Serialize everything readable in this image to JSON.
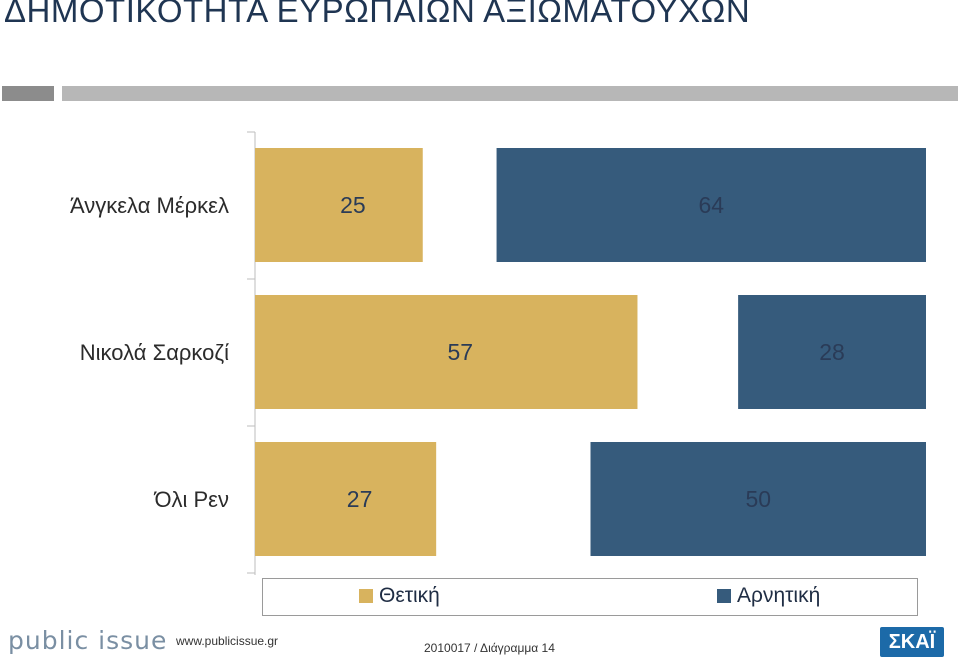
{
  "title": "ΔΗΜΟΤΙΚΟΤΗΤΑ ΕΥΡΩΠΑΙΩΝ ΑΞΙΩΜΑΤΟΥΧΩΝ",
  "chart_data": {
    "type": "bar",
    "orientation": "horizontal",
    "categories": [
      "Άνγκελα Μέρκελ",
      "Νικολά Σαρκοζί",
      "Όλι Ρεν"
    ],
    "series": [
      {
        "name": "Θετική",
        "values": [
          25,
          57,
          27
        ],
        "color": "#d8b35e"
      },
      {
        "name": "Αρνητική",
        "values": [
          64,
          28,
          50
        ],
        "color": "#365b7c"
      }
    ],
    "xlim": [
      0,
      100
    ],
    "legend_position": "bottom",
    "grid": false
  },
  "footer": {
    "logo_text": "public issue",
    "url": "www.publicissue.gr",
    "reference": "2010017 / Διάγραμμα 14",
    "brand": "ΣΚΑΪ"
  }
}
